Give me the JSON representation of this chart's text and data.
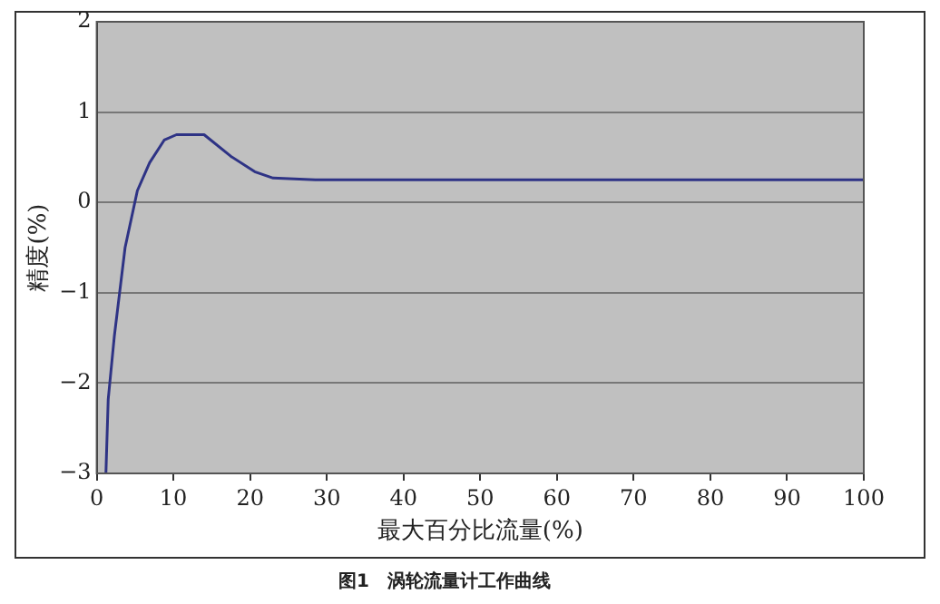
{
  "chart_data": {
    "type": "line",
    "title": "图1　涡轮流量计工作曲线",
    "xlabel": "最大百分比流量(%)",
    "ylabel": "精度(%)",
    "x": [
      1.2,
      1.5,
      2.3,
      3.7,
      5.3,
      6.9,
      8.8,
      10.4,
      14,
      17.5,
      20.6,
      23,
      28.5,
      40,
      60,
      80,
      100
    ],
    "series": [
      {
        "color": "#2e3385",
        "values": [
          -3,
          -2.18,
          -1.48,
          -0.5,
          0.13,
          0.44,
          0.69,
          0.75,
          0.75,
          0.51,
          0.34,
          0.27,
          0.25,
          0.25,
          0.25,
          0.25,
          0.25
        ]
      }
    ],
    "xlim": [
      0,
      100
    ],
    "xticks": [
      0,
      10,
      20,
      30,
      40,
      50,
      60,
      70,
      80,
      90,
      100
    ],
    "ylim": [
      -3,
      2
    ],
    "yticks": [
      -3,
      -2,
      -1,
      0,
      1,
      2
    ],
    "grid": "y",
    "legend": false,
    "marker": "none",
    "line_style": "solid"
  }
}
